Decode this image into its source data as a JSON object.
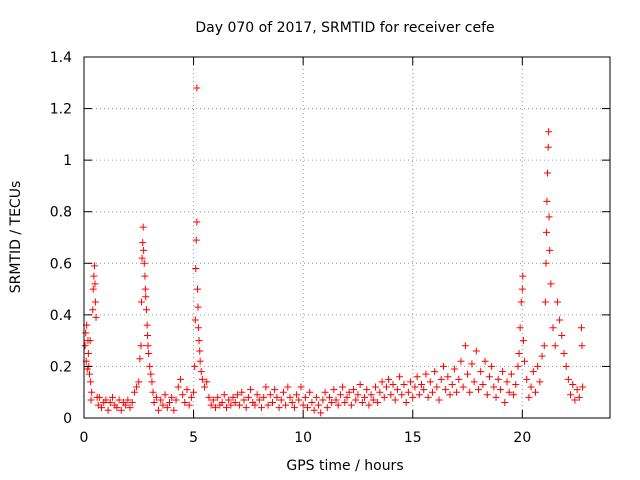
{
  "chart_data": {
    "type": "scatter",
    "title": "Day 070 of 2017, SRMTID for receiver cefe",
    "xlabel": "GPS time / hours",
    "ylabel": "SRMTID / TECUs",
    "xlim": [
      0,
      24
    ],
    "ylim": [
      0,
      1.4
    ],
    "x_ticks": [
      0,
      5,
      10,
      15,
      20
    ],
    "x_tick_labels": [
      "0",
      "5",
      "10",
      "15",
      "20"
    ],
    "y_ticks": [
      0,
      0.2,
      0.4,
      0.6,
      0.8,
      1,
      1.2,
      1.4
    ],
    "y_tick_labels": [
      "0",
      "0.2",
      "0.4",
      "0.6",
      "0.8",
      "1",
      "1.2",
      "1.4"
    ],
    "grid": true,
    "marker": "+",
    "color": "#ff0000",
    "series": [
      {
        "name": "SRMTID",
        "points": [
          [
            0.05,
            0.28
          ],
          [
            0.08,
            0.33
          ],
          [
            0.1,
            0.22
          ],
          [
            0.12,
            0.36
          ],
          [
            0.15,
            0.19
          ],
          [
            0.18,
            0.3
          ],
          [
            0.2,
            0.25
          ],
          [
            0.22,
            0.2
          ],
          [
            0.25,
            0.17
          ],
          [
            0.28,
            0.3
          ],
          [
            0.3,
            0.14
          ],
          [
            0.32,
            0.07
          ],
          [
            0.35,
            0.1
          ],
          [
            0.4,
            0.42
          ],
          [
            0.42,
            0.5
          ],
          [
            0.45,
            0.55
          ],
          [
            0.48,
            0.59
          ],
          [
            0.5,
            0.52
          ],
          [
            0.52,
            0.45
          ],
          [
            0.55,
            0.39
          ],
          [
            0.6,
            0.08
          ],
          [
            0.65,
            0.05
          ],
          [
            0.7,
            0.08
          ],
          [
            0.8,
            0.04
          ],
          [
            0.9,
            0.06
          ],
          [
            1.0,
            0.07
          ],
          [
            1.1,
            0.03
          ],
          [
            1.2,
            0.06
          ],
          [
            1.3,
            0.08
          ],
          [
            1.4,
            0.05
          ],
          [
            1.5,
            0.04
          ],
          [
            1.6,
            0.07
          ],
          [
            1.7,
            0.03
          ],
          [
            1.8,
            0.06
          ],
          [
            1.9,
            0.05
          ],
          [
            2.0,
            0.07
          ],
          [
            2.1,
            0.04
          ],
          [
            2.2,
            0.06
          ],
          [
            2.3,
            0.1
          ],
          [
            2.4,
            0.12
          ],
          [
            2.5,
            0.14
          ],
          [
            2.55,
            0.23
          ],
          [
            2.6,
            0.28
          ],
          [
            2.62,
            0.45
          ],
          [
            2.65,
            0.62
          ],
          [
            2.68,
            0.68
          ],
          [
            2.7,
            0.74
          ],
          [
            2.72,
            0.65
          ],
          [
            2.75,
            0.6
          ],
          [
            2.78,
            0.55
          ],
          [
            2.8,
            0.5
          ],
          [
            2.82,
            0.47
          ],
          [
            2.85,
            0.42
          ],
          [
            2.88,
            0.36
          ],
          [
            2.9,
            0.32
          ],
          [
            2.92,
            0.28
          ],
          [
            2.95,
            0.25
          ],
          [
            3.0,
            0.2
          ],
          [
            3.05,
            0.17
          ],
          [
            3.1,
            0.14
          ],
          [
            3.15,
            0.1
          ],
          [
            3.2,
            0.06
          ],
          [
            3.3,
            0.08
          ],
          [
            3.4,
            0.03
          ],
          [
            3.5,
            0.07
          ],
          [
            3.6,
            0.05
          ],
          [
            3.7,
            0.09
          ],
          [
            3.8,
            0.04
          ],
          [
            3.9,
            0.06
          ],
          [
            4.0,
            0.08
          ],
          [
            4.1,
            0.03
          ],
          [
            4.2,
            0.07
          ],
          [
            4.3,
            0.12
          ],
          [
            4.4,
            0.15
          ],
          [
            4.5,
            0.09
          ],
          [
            4.6,
            0.06
          ],
          [
            4.7,
            0.11
          ],
          [
            4.8,
            0.05
          ],
          [
            4.9,
            0.08
          ],
          [
            5.0,
            0.1
          ],
          [
            5.05,
            0.2
          ],
          [
            5.08,
            0.38
          ],
          [
            5.1,
            0.58
          ],
          [
            5.12,
            0.69
          ],
          [
            5.15,
            0.76
          ],
          [
            5.18,
            0.5
          ],
          [
            5.2,
            0.43
          ],
          [
            5.22,
            0.35
          ],
          [
            5.25,
            0.3
          ],
          [
            5.28,
            0.26
          ],
          [
            5.3,
            0.22
          ],
          [
            5.35,
            0.18
          ],
          [
            5.4,
            0.15
          ],
          [
            5.5,
            0.12
          ],
          [
            5.6,
            0.14
          ],
          [
            5.15,
            1.28
          ],
          [
            5.7,
            0.08
          ],
          [
            5.8,
            0.05
          ],
          [
            5.9,
            0.07
          ],
          [
            6.0,
            0.04
          ],
          [
            6.1,
            0.08
          ],
          [
            6.2,
            0.05
          ],
          [
            6.3,
            0.06
          ],
          [
            6.4,
            0.09
          ],
          [
            6.5,
            0.04
          ],
          [
            6.6,
            0.07
          ],
          [
            6.7,
            0.05
          ],
          [
            6.8,
            0.08
          ],
          [
            6.9,
            0.06
          ],
          [
            7.0,
            0.09
          ],
          [
            7.1,
            0.05
          ],
          [
            7.2,
            0.1
          ],
          [
            7.3,
            0.07
          ],
          [
            7.4,
            0.04
          ],
          [
            7.5,
            0.08
          ],
          [
            7.6,
            0.11
          ],
          [
            7.7,
            0.06
          ],
          [
            7.8,
            0.05
          ],
          [
            7.9,
            0.09
          ],
          [
            8.0,
            0.07
          ],
          [
            8.1,
            0.04
          ],
          [
            8.2,
            0.08
          ],
          [
            8.3,
            0.12
          ],
          [
            8.4,
            0.05
          ],
          [
            8.5,
            0.09
          ],
          [
            8.6,
            0.06
          ],
          [
            8.7,
            0.11
          ],
          [
            8.8,
            0.08
          ],
          [
            8.9,
            0.04
          ],
          [
            9.0,
            0.07
          ],
          [
            9.1,
            0.1
          ],
          [
            9.2,
            0.05
          ],
          [
            9.3,
            0.12
          ],
          [
            9.4,
            0.08
          ],
          [
            9.5,
            0.06
          ],
          [
            9.6,
            0.04
          ],
          [
            9.7,
            0.09
          ],
          [
            9.8,
            0.07
          ],
          [
            9.9,
            0.12
          ],
          [
            10.0,
            0.05
          ],
          [
            10.1,
            0.08
          ],
          [
            10.2,
            0.04
          ],
          [
            10.3,
            0.1
          ],
          [
            10.4,
            0.06
          ],
          [
            10.5,
            0.03
          ],
          [
            10.6,
            0.08
          ],
          [
            10.7,
            0.05
          ],
          [
            10.8,
            0.02
          ],
          [
            10.9,
            0.07
          ],
          [
            11.0,
            0.1
          ],
          [
            11.1,
            0.04
          ],
          [
            11.2,
            0.08
          ],
          [
            11.3,
            0.06
          ],
          [
            11.4,
            0.11
          ],
          [
            11.5,
            0.07
          ],
          [
            11.6,
            0.05
          ],
          [
            11.7,
            0.09
          ],
          [
            11.8,
            0.12
          ],
          [
            11.9,
            0.06
          ],
          [
            12.0,
            0.08
          ],
          [
            12.1,
            0.1
          ],
          [
            12.2,
            0.05
          ],
          [
            12.3,
            0.11
          ],
          [
            12.4,
            0.07
          ],
          [
            12.5,
            0.09
          ],
          [
            12.6,
            0.13
          ],
          [
            12.7,
            0.06
          ],
          [
            12.8,
            0.08
          ],
          [
            12.9,
            0.11
          ],
          [
            13.0,
            0.05
          ],
          [
            13.1,
            0.09
          ],
          [
            13.2,
            0.07
          ],
          [
            13.3,
            0.12
          ],
          [
            13.4,
            0.06
          ],
          [
            13.5,
            0.1
          ],
          [
            13.6,
            0.14
          ],
          [
            13.7,
            0.08
          ],
          [
            13.8,
            0.12
          ],
          [
            13.9,
            0.15
          ],
          [
            14.0,
            0.09
          ],
          [
            14.1,
            0.13
          ],
          [
            14.2,
            0.07
          ],
          [
            14.3,
            0.11
          ],
          [
            14.4,
            0.16
          ],
          [
            14.5,
            0.09
          ],
          [
            14.6,
            0.13
          ],
          [
            14.7,
            0.06
          ],
          [
            14.8,
            0.1
          ],
          [
            14.9,
            0.14
          ],
          [
            15.0,
            0.08
          ],
          [
            15.1,
            0.12
          ],
          [
            15.2,
            0.16
          ],
          [
            15.3,
            0.09
          ],
          [
            15.4,
            0.13
          ],
          [
            15.5,
            0.11
          ],
          [
            15.6,
            0.17
          ],
          [
            15.7,
            0.08
          ],
          [
            15.8,
            0.14
          ],
          [
            15.9,
            0.1
          ],
          [
            16.0,
            0.18
          ],
          [
            16.1,
            0.12
          ],
          [
            16.2,
            0.07
          ],
          [
            16.3,
            0.15
          ],
          [
            16.4,
            0.2
          ],
          [
            16.5,
            0.11
          ],
          [
            16.6,
            0.16
          ],
          [
            16.7,
            0.09
          ],
          [
            16.8,
            0.13
          ],
          [
            16.9,
            0.19
          ],
          [
            17.0,
            0.1
          ],
          [
            17.1,
            0.15
          ],
          [
            17.2,
            0.22
          ],
          [
            17.3,
            0.12
          ],
          [
            17.4,
            0.28
          ],
          [
            17.5,
            0.17
          ],
          [
            17.6,
            0.1
          ],
          [
            17.7,
            0.21
          ],
          [
            17.8,
            0.14
          ],
          [
            17.9,
            0.26
          ],
          [
            18.0,
            0.11
          ],
          [
            18.1,
            0.18
          ],
          [
            18.2,
            0.13
          ],
          [
            18.3,
            0.22
          ],
          [
            18.4,
            0.09
          ],
          [
            18.5,
            0.16
          ],
          [
            18.6,
            0.2
          ],
          [
            18.7,
            0.12
          ],
          [
            18.8,
            0.08
          ],
          [
            18.9,
            0.15
          ],
          [
            19.0,
            0.11
          ],
          [
            19.1,
            0.18
          ],
          [
            19.2,
            0.06
          ],
          [
            19.3,
            0.14
          ],
          [
            19.4,
            0.1
          ],
          [
            19.5,
            0.17
          ],
          [
            19.6,
            0.09
          ],
          [
            19.7,
            0.13
          ],
          [
            19.8,
            0.2
          ],
          [
            19.85,
            0.25
          ],
          [
            19.9,
            0.35
          ],
          [
            19.95,
            0.45
          ],
          [
            20.0,
            0.5
          ],
          [
            20.02,
            0.55
          ],
          [
            20.05,
            0.3
          ],
          [
            20.1,
            0.22
          ],
          [
            20.2,
            0.15
          ],
          [
            20.3,
            0.08
          ],
          [
            20.4,
            0.12
          ],
          [
            20.5,
            0.18
          ],
          [
            20.6,
            0.1
          ],
          [
            20.7,
            0.2
          ],
          [
            20.8,
            0.14
          ],
          [
            20.9,
            0.24
          ],
          [
            21.0,
            0.28
          ],
          [
            21.05,
            0.45
          ],
          [
            21.08,
            0.6
          ],
          [
            21.1,
            0.72
          ],
          [
            21.12,
            0.84
          ],
          [
            21.15,
            0.95
          ],
          [
            21.18,
            1.05
          ],
          [
            21.2,
            1.11
          ],
          [
            21.22,
            0.78
          ],
          [
            21.25,
            0.65
          ],
          [
            21.3,
            0.52
          ],
          [
            21.4,
            0.35
          ],
          [
            21.5,
            0.28
          ],
          [
            21.6,
            0.45
          ],
          [
            21.7,
            0.38
          ],
          [
            21.8,
            0.32
          ],
          [
            21.9,
            0.25
          ],
          [
            22.0,
            0.2
          ],
          [
            22.1,
            0.15
          ],
          [
            22.2,
            0.09
          ],
          [
            22.3,
            0.13
          ],
          [
            22.4,
            0.07
          ],
          [
            22.5,
            0.11
          ],
          [
            22.6,
            0.08
          ],
          [
            22.7,
            0.35
          ],
          [
            22.72,
            0.28
          ],
          [
            22.75,
            0.12
          ]
        ]
      }
    ]
  }
}
